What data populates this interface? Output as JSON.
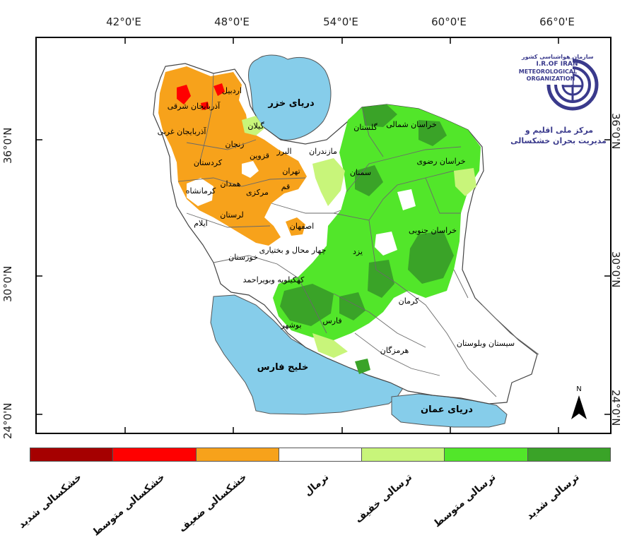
{
  "axes": {
    "top_ticks": [
      "42°0'E",
      "48°0'E",
      "54°0'E",
      "60°0'E",
      "66°0'E"
    ],
    "left_ticks": [
      "36°0'N",
      "30°0'N",
      "24°0'N"
    ],
    "right_ticks": [
      "36°0'N",
      "30°0'N",
      "24°0'N"
    ]
  },
  "logo": {
    "small_title": "سازمان هواشناسی کشور",
    "line1": "I.R.OF IRAN",
    "line2": "METEOROLOGICAL",
    "line3": "ORGANIZATION",
    "center_line1": "مرکز ملی اقلیم و",
    "center_line2": "مدیریت بحران خشکسالی"
  },
  "water_labels": {
    "caspian": "دریای خزر",
    "persian_gulf": "خلیج فارس",
    "oman_sea": "دریای عمان"
  },
  "provinces": [
    {
      "name": "اردبیل"
    },
    {
      "name": "آذربایجان شرقی"
    },
    {
      "name": "آذربایجان غربی"
    },
    {
      "name": "گیلان"
    },
    {
      "name": "زنجان"
    },
    {
      "name": "مازندران"
    },
    {
      "name": "البرز"
    },
    {
      "name": "قزوین"
    },
    {
      "name": "کردستان"
    },
    {
      "name": "تهران"
    },
    {
      "name": "همدان"
    },
    {
      "name": "قم"
    },
    {
      "name": "کرمانشاه"
    },
    {
      "name": "مرکزی"
    },
    {
      "name": "لرستان"
    },
    {
      "name": "ایلام"
    },
    {
      "name": "اصفهان"
    },
    {
      "name": "خوزستان"
    },
    {
      "name": "چهار محال و بختیاری"
    },
    {
      "name": "کهکیلویه وبویراحمد"
    },
    {
      "name": "بوشهر"
    },
    {
      "name": "فارس"
    },
    {
      "name": "یزد"
    },
    {
      "name": "کرمان"
    },
    {
      "name": "هرمزگان"
    },
    {
      "name": "سیستان وبلوستان"
    },
    {
      "name": "خراسان شمالی"
    },
    {
      "name": "گلستان"
    },
    {
      "name": "سمنان"
    },
    {
      "name": "خراسان رضوی"
    },
    {
      "name": "خراسان جنوبی"
    }
  ],
  "north_arrow": "N",
  "legend": [
    {
      "label": "خشکسالی شدید",
      "color": "#a50000"
    },
    {
      "label": "خشکسالی متوسط",
      "color": "#ff0000"
    },
    {
      "label": "خشکسالی ضعیف",
      "color": "#f7a21b"
    },
    {
      "label": "نرمال",
      "color": "#ffffff"
    },
    {
      "label": "ترسالی خفیف",
      "color": "#c8f57a"
    },
    {
      "label": "ترسالی متوسط",
      "color": "#52e62a"
    },
    {
      "label": "ترسالی شدید",
      "color": "#3aa328"
    }
  ],
  "colors": {
    "water": "#86cdea",
    "dry_weak": "#f7a21b",
    "dry_mod": "#ff0000",
    "wet_light": "#c8f57a",
    "wet_mod": "#52e62a",
    "wet_strong": "#3aa328"
  }
}
